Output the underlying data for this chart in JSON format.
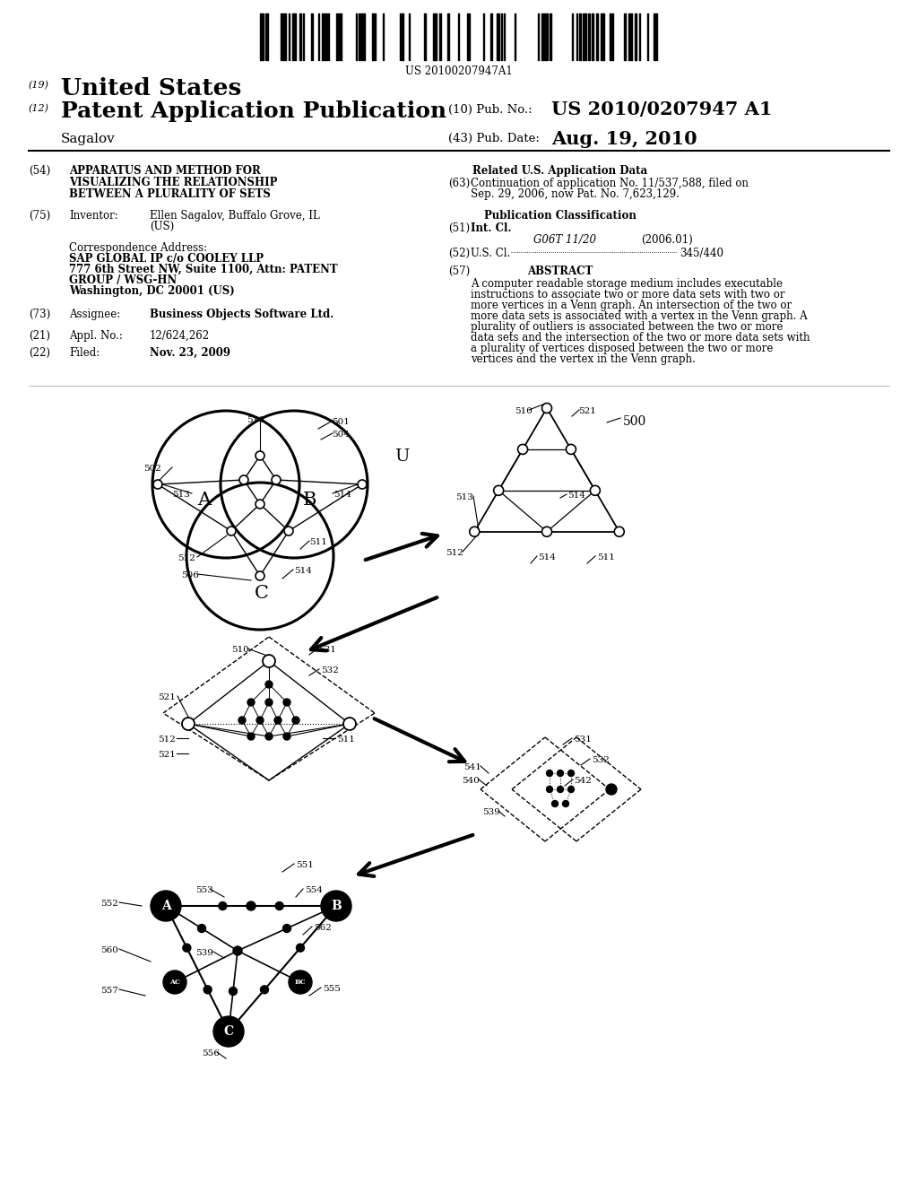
{
  "background_color": "#ffffff",
  "barcode_text": "US 20100207947A1",
  "title_19_text": "United States",
  "title_12_text": "Patent Application Publication",
  "pub_no_label": "(10) Pub. No.:",
  "pub_no_value": "US 2010/0207947 A1",
  "author": "Sagalov",
  "pub_date_label": "(43) Pub. Date:",
  "pub_date_value": "Aug. 19, 2010",
  "field54_text": "APPARATUS AND METHOD FOR\nVISUALIZING THE RELATIONSHIP\nBETWEEN A PLURALITY OF SETS",
  "field75_inventor": "Ellen Sagalov, Buffalo Grove, IL\n(US)",
  "field73_text": "Business Objects Software Ltd.",
  "field21_text": "12/624,262",
  "field22_text": "Nov. 23, 2009",
  "field63_text": "Continuation of application No. 11/537,588, filed on Sep. 29, 2006, now Pat. No. 7,623,129.",
  "field51_class": "G06T 11/20",
  "field51_year": "(2006.01)",
  "field52_value": "345/440",
  "field57_text": "A computer readable storage medium includes executable instructions to associate two or more data sets with two or more vertices in a Venn graph. An intersection of the two or more data sets is associated with a vertex in the Venn graph. A plurality of outliers is associated between the two or more data sets and the intersection of the two or more data sets with a plurality of vertices disposed between the two or more vertices and the vertex in the Venn graph."
}
